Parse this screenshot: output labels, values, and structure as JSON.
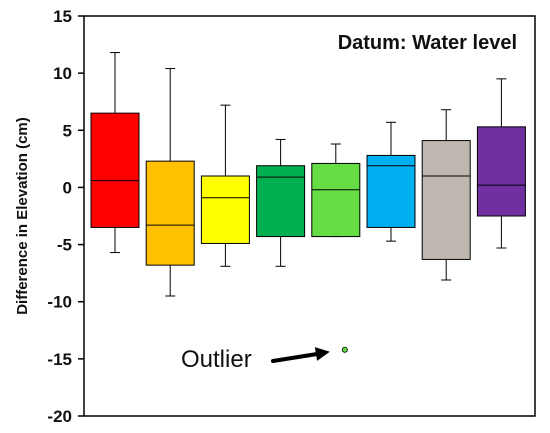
{
  "chart_data": {
    "type": "box",
    "title": "Datum: Water level",
    "xlabel": "",
    "ylabel": "Difference in Elevation (cm)",
    "ylim": [
      -20,
      15
    ],
    "yticks": [
      15,
      10,
      5,
      0,
      -5,
      -10,
      -15,
      -20
    ],
    "ytick_labels": [
      "15",
      "10",
      "5",
      "0",
      "-5",
      "-10",
      "-15",
      "-20"
    ],
    "grid": false,
    "legend": "none",
    "boxes": [
      {
        "color": "#ff0000",
        "whisker_low": -5.7,
        "q1": -3.5,
        "median": 0.6,
        "q3": 6.5,
        "whisker_high": 11.8
      },
      {
        "color": "#ffc000",
        "whisker_low": -9.5,
        "q1": -6.8,
        "median": -3.3,
        "q3": 2.3,
        "whisker_high": 10.4
      },
      {
        "color": "#ffff00",
        "whisker_low": -6.9,
        "q1": -4.9,
        "median": -0.9,
        "q3": 1.0,
        "whisker_high": 7.2
      },
      {
        "color": "#00b050",
        "whisker_low": -6.9,
        "q1": -4.3,
        "median": 0.9,
        "q3": 1.9,
        "whisker_high": 4.2
      },
      {
        "color": "#66dd44",
        "whisker_low": -4.3,
        "q1": -4.3,
        "median": -0.2,
        "q3": 2.1,
        "whisker_high": 3.8,
        "outliers": [
          -14.2
        ]
      },
      {
        "color": "#00b0f0",
        "whisker_low": -4.7,
        "q1": -3.5,
        "median": 1.9,
        "q3": 2.8,
        "whisker_high": 5.7
      },
      {
        "color": "#bfb8b0",
        "whisker_low": -8.1,
        "q1": -6.3,
        "median": 1.0,
        "q3": 4.1,
        "whisker_high": 6.8
      },
      {
        "color": "#7030a0",
        "whisker_low": -5.3,
        "q1": -2.5,
        "median": 0.2,
        "q3": 5.3,
        "whisker_high": 9.5
      }
    ],
    "annotations": [
      {
        "text": "Outlier",
        "points_to_box": 4
      }
    ]
  }
}
